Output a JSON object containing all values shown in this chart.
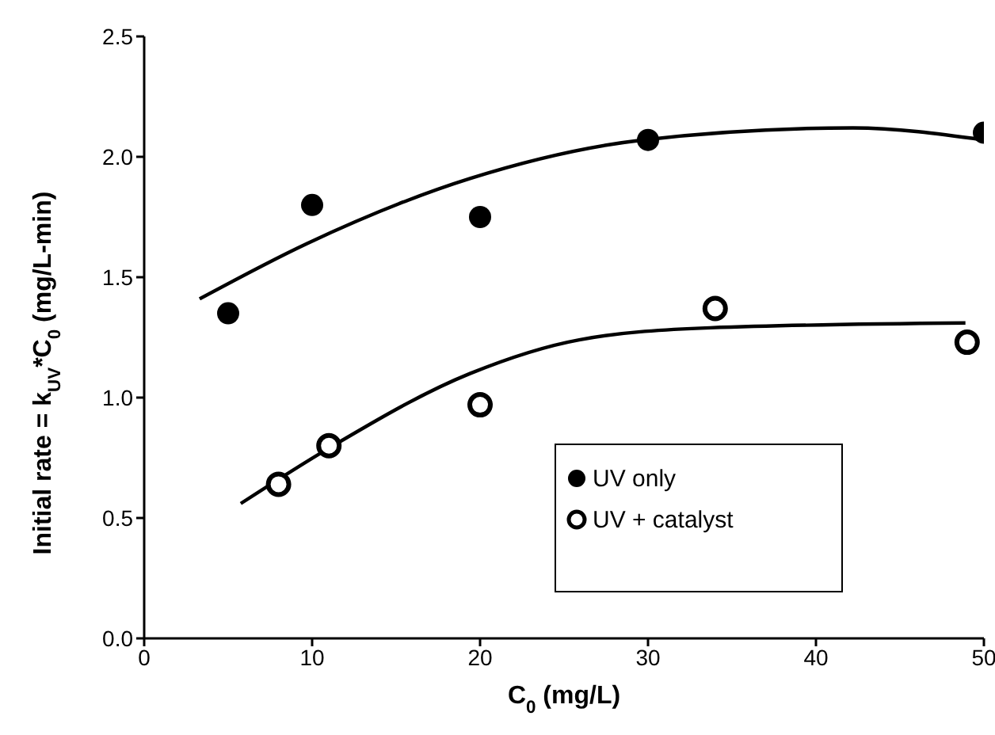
{
  "chart_data": {
    "type": "scatter",
    "xlabel": "C$_{0}$ (mg/L)",
    "ylabel": "Initial rate = k$_{UV}$*C$_{0}$ (mg/L-min)",
    "xlim": [
      0,
      50
    ],
    "xticks": [
      0,
      10,
      20,
      30,
      40,
      50
    ],
    "ylim": [
      0,
      2.5
    ],
    "yticks": [
      {
        "value": 0,
        "label": "0.0"
      },
      {
        "value": 0.5,
        "label": "0.5"
      },
      {
        "value": 1,
        "label": "1.0"
      },
      {
        "value": 1.5,
        "label": "1.5"
      },
      {
        "value": 2,
        "label": "2.0"
      },
      {
        "value": 2.5,
        "label": "2.5"
      }
    ],
    "grid": false,
    "legend": "bottom right",
    "marker": "circle",
    "series": [
      {
        "name": "UV only",
        "color": "#000000",
        "x": [
          5,
          10,
          20,
          30,
          50
        ],
        "values": [
          1.35,
          1.8,
          1.75,
          2.07,
          2.1
        ]
      },
      {
        "name": "UV + catalyst",
        "color": "#000000",
        "x": [
          8,
          11,
          20,
          34,
          49
        ],
        "values": [
          0.64,
          0.8,
          0.97,
          1.37,
          1.23
        ]
      },
      {
        "type": "line",
        "color": "#000000",
        "marker": "none",
        "line_style": "solid",
        "x": [
          3.3,
          9.7,
          19.4,
          29.7,
          42.2,
          50
        ],
        "values": [
          1.41,
          1.64,
          1.91,
          2.07,
          2.12,
          2.07
        ]
      },
      {
        "type": "line",
        "color": "#000000",
        "marker": "none",
        "line_style": "solid",
        "x": [
          5.75,
          11,
          19.4,
          25.9,
          33.7,
          48.9
        ],
        "values": [
          0.56,
          0.79,
          1.1,
          1.24,
          1.29,
          1.31
        ]
      }
    ]
  }
}
